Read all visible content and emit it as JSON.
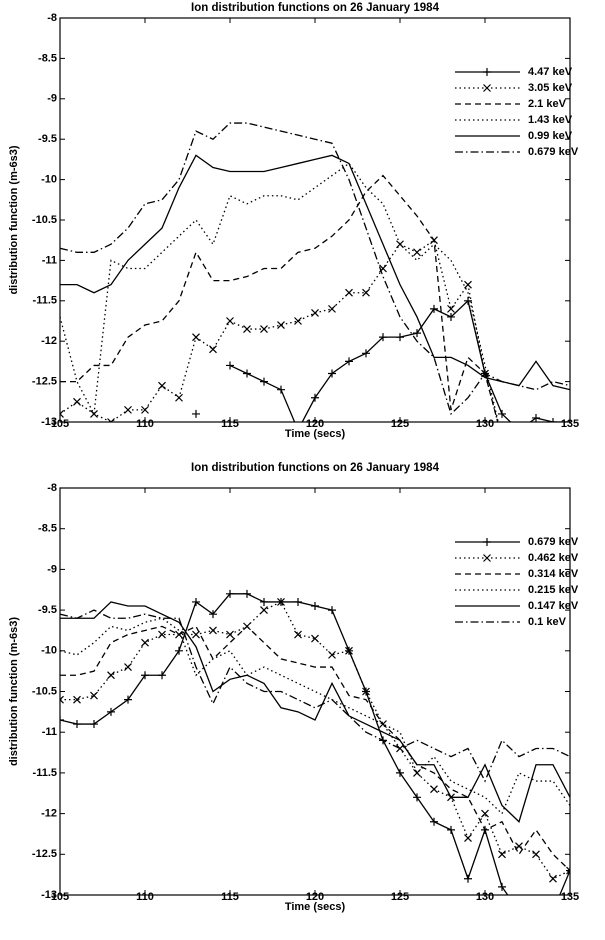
{
  "chart_data": [
    {
      "type": "line",
      "title": "Ion distribution functions on 26 January 1984",
      "xlabel": "Time (secs)",
      "ylabel": "distribution function (m-6s3)",
      "x": [
        105,
        106,
        107,
        108,
        109,
        110,
        111,
        112,
        113,
        114,
        115,
        116,
        117,
        118,
        119,
        120,
        121,
        122,
        123,
        124,
        125,
        126,
        127,
        128,
        129,
        130,
        131,
        132,
        133,
        134,
        135
      ],
      "xlim": [
        105,
        135
      ],
      "xticks": [
        105,
        110,
        115,
        120,
        125,
        130,
        135
      ],
      "ylim": [
        -13,
        -8
      ],
      "yticks": [
        -13,
        -12.5,
        -12,
        -11.5,
        -11,
        -10.5,
        -10,
        -9.5,
        -9,
        -8.5,
        -8
      ],
      "legend": "upper right",
      "series": [
        {
          "name": "4.47 keV",
          "color": "#000000",
          "dash": "solid",
          "marker": "+",
          "values": [
            null,
            null,
            null,
            null,
            null,
            null,
            null,
            null,
            -12.9,
            null,
            -12.3,
            -12.4,
            -12.5,
            -12.6,
            -13.1,
            -12.7,
            -12.4,
            -12.25,
            -12.15,
            -11.95,
            -11.95,
            -11.9,
            -11.6,
            -11.7,
            -11.5,
            -12.4,
            -12.9,
            -13.1,
            -12.95,
            -13,
            -13
          ]
        },
        {
          "name": "3.05 keV",
          "color": "#000000",
          "dash": "dotted",
          "marker": "x",
          "values": [
            -12.9,
            -12.75,
            -12.9,
            -13,
            -12.85,
            -12.85,
            -12.55,
            -12.7,
            -11.95,
            -12.1,
            -11.75,
            -11.85,
            -11.85,
            -11.8,
            -11.75,
            -11.65,
            -11.6,
            -11.4,
            -11.4,
            -11.1,
            -10.8,
            -10.9,
            -10.75,
            -11.6,
            -11.3,
            -12.4,
            -13.2,
            null,
            null,
            null,
            null
          ]
        },
        {
          "name": "2.1 keV",
          "color": "#000000",
          "dash": "dashed",
          "marker": "none",
          "values": [
            -12.5,
            -12.5,
            -12.3,
            -12.3,
            -11.95,
            -11.8,
            -11.75,
            -11.5,
            -10.9,
            -11.25,
            -11.25,
            -11.2,
            -11.1,
            -11.1,
            -10.9,
            -10.85,
            -10.7,
            -10.5,
            -10.15,
            -9.95,
            -10.2,
            -10.45,
            -10.75,
            -12.85,
            -12.2,
            -12.4,
            -13.2,
            null,
            null,
            null,
            null
          ]
        },
        {
          "name": "1.43 keV",
          "color": "#000000",
          "dash": "dotted",
          "marker": "none",
          "values": [
            -11.7,
            -12.5,
            -12.9,
            -11,
            -11.1,
            -11.1,
            -10.9,
            -10.7,
            -10.5,
            -10.8,
            -10.2,
            -10.3,
            -10.2,
            -10.2,
            -10.25,
            -10.1,
            -9.95,
            -9.8,
            -10.1,
            -10.3,
            -10.8,
            -11,
            -10.8,
            -11,
            -11.4,
            -12.3,
            -13.2,
            null,
            null,
            null,
            null
          ]
        },
        {
          "name": "0.99 keV",
          "color": "#000000",
          "dash": "solid",
          "marker": "none",
          "values": [
            -11.3,
            -11.3,
            -11.4,
            -11.3,
            -11,
            -10.8,
            -10.6,
            -10.1,
            -9.7,
            -9.85,
            -9.9,
            -9.9,
            -9.9,
            -9.85,
            -9.8,
            -9.75,
            -9.7,
            -9.8,
            -10.3,
            -10.8,
            -11.3,
            -11.7,
            -12.2,
            -12.2,
            -12.3,
            -12.45,
            -12.5,
            -12.55,
            -12.25,
            -12.55,
            -12.6
          ]
        },
        {
          "name": "0.679 keV",
          "color": "#000000",
          "dash": "dashdot",
          "marker": "none",
          "values": [
            -10.85,
            -10.9,
            -10.9,
            -10.8,
            -10.6,
            -10.3,
            -10.25,
            -10,
            -9.4,
            -9.5,
            -9.3,
            -9.3,
            -9.35,
            -9.4,
            -9.45,
            -9.5,
            -9.55,
            -10,
            -10.6,
            -11.2,
            -11.7,
            -12,
            -12.2,
            -12.9,
            -12.7,
            -12.4,
            -12.5,
            -12.55,
            -12.6,
            -12.5,
            -12.55
          ]
        }
      ]
    },
    {
      "type": "line",
      "title": "Ion distribution functions on 26 January 1984",
      "xlabel": "Time (secs)",
      "ylabel": "distribution function (m-6s3)",
      "x": [
        105,
        106,
        107,
        108,
        109,
        110,
        111,
        112,
        113,
        114,
        115,
        116,
        117,
        118,
        119,
        120,
        121,
        122,
        123,
        124,
        125,
        126,
        127,
        128,
        129,
        130,
        131,
        132,
        133,
        134,
        135
      ],
      "xlim": [
        105,
        135
      ],
      "xticks": [
        105,
        110,
        115,
        120,
        125,
        130,
        135
      ],
      "ylim": [
        -13,
        -8
      ],
      "yticks": [
        -13,
        -12.5,
        -12,
        -11.5,
        -11,
        -10.5,
        -10,
        -9.5,
        -9,
        -8.5,
        -8
      ],
      "legend": "upper right",
      "series": [
        {
          "name": "0.679 keV",
          "color": "#000000",
          "dash": "solid",
          "marker": "+",
          "values": [
            -10.85,
            -10.9,
            -10.9,
            -10.75,
            -10.6,
            -10.3,
            -10.3,
            -10,
            -9.4,
            -9.55,
            -9.3,
            -9.3,
            -9.4,
            -9.4,
            -9.4,
            -9.45,
            -9.5,
            -10,
            -10.5,
            -11.1,
            -11.5,
            -11.8,
            -12.1,
            -12.2,
            -12.8,
            -12.2,
            -12.9,
            -13.2,
            -13.1,
            -13.2,
            -12.7
          ]
        },
        {
          "name": "0.462 keV",
          "color": "#000000",
          "dash": "dotted",
          "marker": "x",
          "values": [
            -10.6,
            -10.6,
            -10.55,
            -10.3,
            -10.2,
            -9.9,
            -9.8,
            -9.8,
            -9.8,
            -9.75,
            -9.8,
            -9.7,
            -9.5,
            -9.4,
            -9.8,
            -9.85,
            -10.05,
            -10,
            -10.5,
            -10.9,
            -11.2,
            -11.5,
            -11.7,
            -11.8,
            -12.3,
            -12,
            -12.5,
            -12.4,
            -12.5,
            -12.8,
            -12.7
          ]
        },
        {
          "name": "0.314 keV",
          "color": "#000000",
          "dash": "dashed",
          "marker": "none",
          "values": [
            -10.3,
            -10.3,
            -10.25,
            -9.9,
            -9.8,
            -9.75,
            -9.7,
            -9.8,
            -9.7,
            -10.1,
            -9.9,
            -9.7,
            -9.9,
            -10.1,
            -10.15,
            -10.2,
            -10.2,
            -10.55,
            -10.6,
            -10.9,
            -11.1,
            -11.4,
            -11.5,
            -11.7,
            -11.8,
            -12.2,
            -12.1,
            -12.5,
            -12.2,
            -12.5,
            -12.7
          ]
        },
        {
          "name": "0.215 keV",
          "color": "#000000",
          "dash": "dotted",
          "marker": "none",
          "values": [
            -10,
            -10.05,
            -9.9,
            -9.7,
            -9.75,
            -9.65,
            -9.6,
            -9.75,
            -10.3,
            -10.1,
            -10,
            -10.3,
            -10.2,
            -10.3,
            -10.4,
            -10.5,
            -10.6,
            -10.7,
            -10.8,
            -10.9,
            -11,
            -11.5,
            -11.3,
            -11.6,
            -11.7,
            -11.8,
            -12,
            -11.5,
            -11.6,
            -11.6,
            -11.9
          ]
        },
        {
          "name": "0.147 keV",
          "color": "#000000",
          "dash": "solid",
          "marker": "none",
          "values": [
            -9.6,
            -9.6,
            -9.6,
            -9.4,
            -9.45,
            -9.45,
            -9.55,
            -9.65,
            -9.95,
            -10.5,
            -10.35,
            -10.3,
            -10.4,
            -10.7,
            -10.75,
            -10.85,
            -10.4,
            -10.8,
            -10.9,
            -11,
            -11.1,
            -11.4,
            -11.4,
            -11.8,
            -11.8,
            -11.4,
            -11.9,
            -12.1,
            -11.4,
            -11.4,
            -11.8
          ]
        },
        {
          "name": "0.1 keV",
          "color": "#000000",
          "dash": "dashdot",
          "marker": "none",
          "values": [
            -9.55,
            -9.6,
            -9.5,
            -9.6,
            -9.6,
            -9.55,
            -9.6,
            -9.6,
            -10.2,
            -10.65,
            -10.2,
            -10.4,
            -10.5,
            -10.5,
            -10.6,
            -10.7,
            -10.6,
            -10.8,
            -11,
            -11.1,
            -11.2,
            -11.1,
            -11.2,
            -11.3,
            -11.2,
            -11.6,
            -11.1,
            -11.3,
            -11.2,
            -11.2,
            -11.3
          ]
        }
      ]
    }
  ]
}
